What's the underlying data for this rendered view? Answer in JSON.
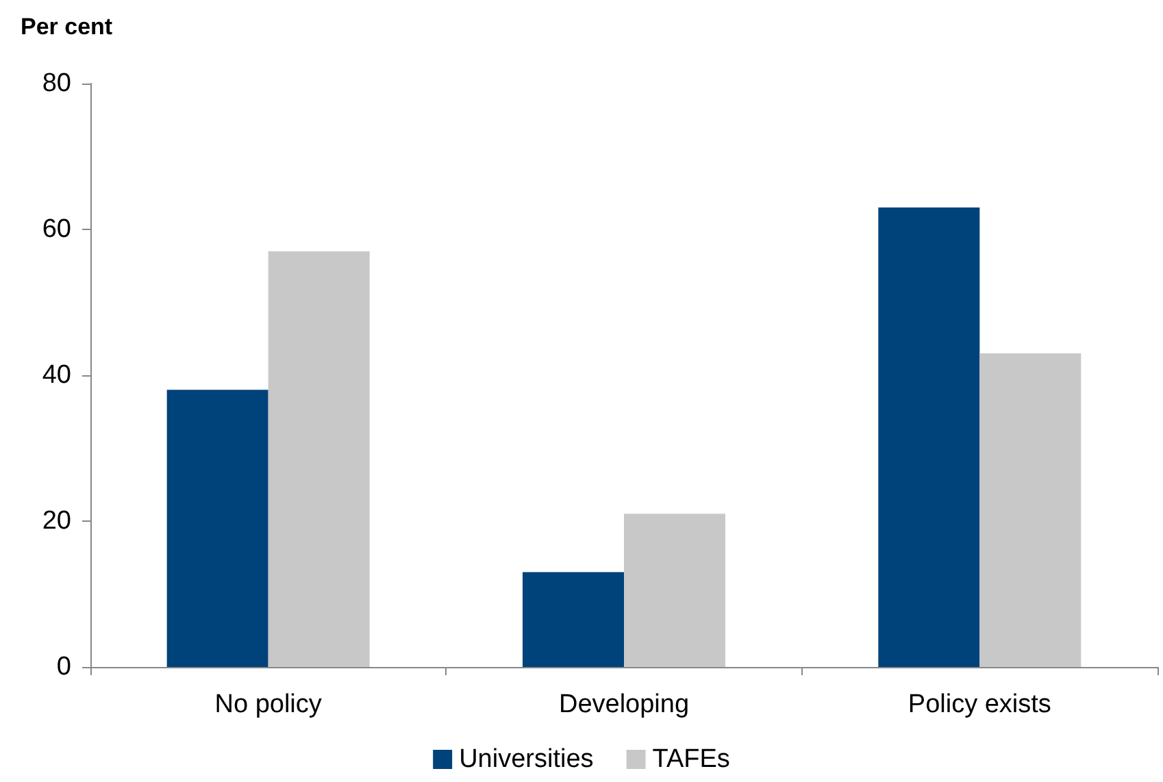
{
  "chart_data": {
    "type": "bar",
    "ylabel": "Per cent",
    "categories": [
      "No policy",
      "Developing",
      "Policy exists"
    ],
    "series": [
      {
        "name": "Universities",
        "color": "#00427a",
        "values": [
          38,
          13,
          63
        ]
      },
      {
        "name": "TAFEs",
        "color": "#c8c8c8",
        "values": [
          57,
          21,
          43
        ]
      }
    ],
    "ylim": [
      0,
      80
    ],
    "yticks": [
      0,
      20,
      40,
      60,
      80
    ],
    "grid": false,
    "legend": "bottom"
  }
}
